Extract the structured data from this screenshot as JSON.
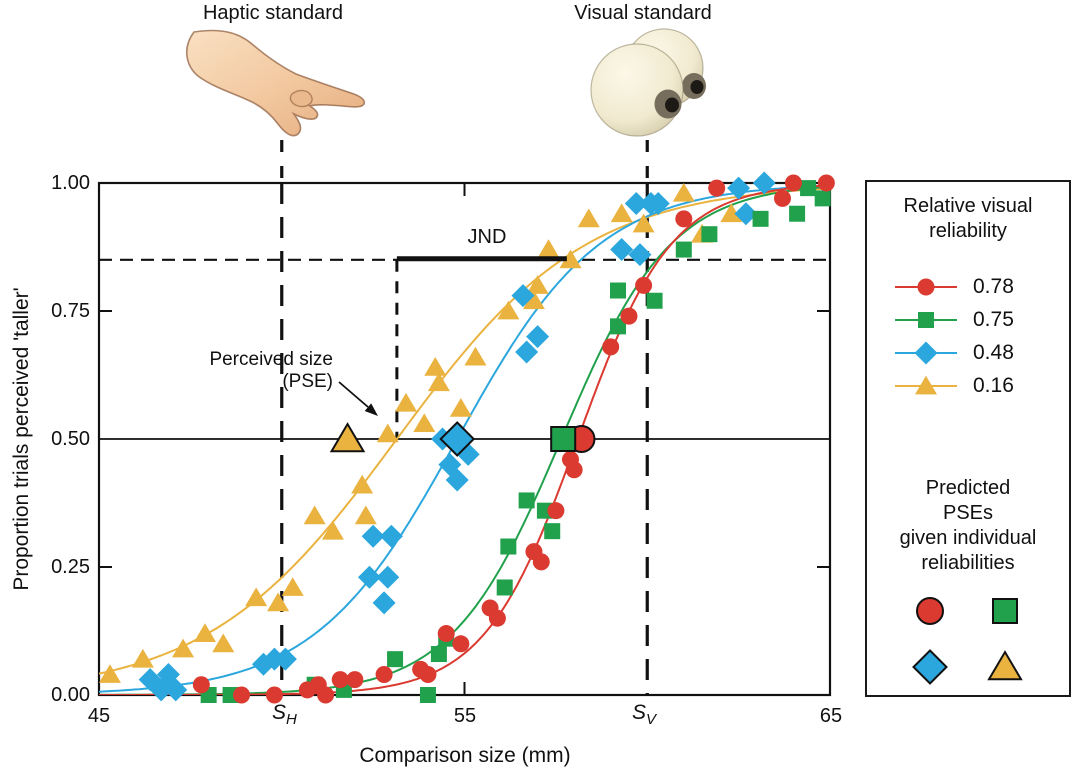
{
  "header": {
    "haptic_label": "Haptic standard",
    "visual_label": "Visual standard"
  },
  "axes": {
    "x": {
      "title": "Comparison size (mm)",
      "ticks": [
        "45",
        "55",
        "65"
      ],
      "standard_haptic": {
        "base": "S",
        "sub": "H"
      },
      "standard_visual": {
        "base": "S",
        "sub": "V"
      }
    },
    "y": {
      "title": "Proportion trials perceived 'taller'",
      "ticks": [
        "0.00",
        "0.25",
        "0.50",
        "0.75",
        "1.00"
      ]
    }
  },
  "annotations": {
    "jnd": "JND",
    "pse_line1": "Perceived size",
    "pse_line2": "(PSE)"
  },
  "legend": {
    "title_line1": "Relative visual",
    "title_line2": "reliability",
    "items": [
      {
        "label": "0.78",
        "shape": "circle",
        "color": "#da3a30"
      },
      {
        "label": "0.75",
        "shape": "square",
        "color": "#21a14c"
      },
      {
        "label": "0.48",
        "shape": "diamond",
        "color": "#2ba7dd"
      },
      {
        "label": "0.16",
        "shape": "triangle",
        "color": "#eab23f"
      }
    ],
    "predicted_title_lines": [
      "Predicted",
      "PSEs",
      "given individual",
      "reliabilities"
    ],
    "predicted_markers": [
      {
        "shape": "circle",
        "color": "#da3a30"
      },
      {
        "shape": "square",
        "color": "#21a14c"
      },
      {
        "shape": "diamond",
        "color": "#2ba7dd"
      },
      {
        "shape": "triangle",
        "color": "#eab23f"
      }
    ]
  },
  "chart_data": {
    "type": "scatter",
    "title": "",
    "xlabel": "Comparison size (mm)",
    "ylabel": "Proportion trials perceived 'taller'",
    "xlim": [
      45,
      65
    ],
    "ylim": [
      0,
      1
    ],
    "x_ticks": [
      45,
      55,
      65
    ],
    "y_ticks": [
      0,
      0.25,
      0.5,
      0.75,
      1
    ],
    "haptic_standard_mm": 50,
    "visual_standard_mm": 60,
    "jnd_level": 0.85,
    "measured_pse_mm": 53.15,
    "jnd_span_mm": [
      53.15,
      57.8
    ],
    "series": [
      {
        "name": "0.16",
        "reliability": 0.16,
        "shape": "triangle",
        "color": "#eab23f",
        "predicted_pse_mm": 51.8,
        "curve": {
          "type": "logistic",
          "pse": 53.15,
          "slope": 2.6
        },
        "points": [
          [
            45.3,
            0.04
          ],
          [
            46.2,
            0.07
          ],
          [
            47.3,
            0.09
          ],
          [
            47.9,
            0.12
          ],
          [
            48.4,
            0.1
          ],
          [
            49.3,
            0.19
          ],
          [
            49.9,
            0.18
          ],
          [
            50.3,
            0.21
          ],
          [
            50.9,
            0.35
          ],
          [
            51.4,
            0.32
          ],
          [
            52.2,
            0.41
          ],
          [
            52.3,
            0.35
          ],
          [
            52.9,
            0.51
          ],
          [
            53.4,
            0.57
          ],
          [
            53.9,
            0.53
          ],
          [
            54.2,
            0.64
          ],
          [
            54.3,
            0.61
          ],
          [
            54.9,
            0.56
          ],
          [
            55.3,
            0.66
          ],
          [
            56.2,
            0.75
          ],
          [
            56.9,
            0.77
          ],
          [
            57.0,
            0.8
          ],
          [
            57.3,
            0.87
          ],
          [
            57.9,
            0.85
          ],
          [
            58.4,
            0.93
          ],
          [
            59.3,
            0.94
          ],
          [
            59.9,
            0.92
          ],
          [
            61.0,
            0.98
          ],
          [
            61.5,
            0.9
          ],
          [
            62.3,
            0.94
          ]
        ]
      },
      {
        "name": "0.48",
        "reliability": 0.48,
        "shape": "diamond",
        "color": "#2ba7dd",
        "predicted_pse_mm": 54.8,
        "curve": {
          "type": "logistic",
          "pse": 54.8,
          "slope": 1.95
        },
        "points": [
          [
            46.4,
            0.03
          ],
          [
            46.7,
            0.01
          ],
          [
            46.9,
            0.04
          ],
          [
            47.1,
            0.01
          ],
          [
            49.5,
            0.06
          ],
          [
            49.8,
            0.07
          ],
          [
            50.1,
            0.07
          ],
          [
            52.4,
            0.23
          ],
          [
            52.5,
            0.31
          ],
          [
            52.8,
            0.18
          ],
          [
            52.9,
            0.23
          ],
          [
            53.0,
            0.31
          ],
          [
            54.4,
            0.5
          ],
          [
            54.6,
            0.45
          ],
          [
            54.8,
            0.42
          ],
          [
            55.1,
            0.47
          ],
          [
            56.6,
            0.78
          ],
          [
            56.7,
            0.67
          ],
          [
            57.0,
            0.7
          ],
          [
            59.3,
            0.87
          ],
          [
            59.8,
            0.86
          ],
          [
            59.7,
            0.96
          ],
          [
            60.1,
            0.96
          ],
          [
            60.3,
            0.96
          ],
          [
            62.5,
            0.99
          ],
          [
            62.7,
            0.94
          ],
          [
            63.2,
            1.0
          ]
        ]
      },
      {
        "name": "0.75",
        "reliability": 0.75,
        "shape": "square",
        "color": "#21a14c",
        "predicted_pse_mm": 57.7,
        "curve": {
          "type": "logistic",
          "pse": 57.65,
          "slope": 1.5
        },
        "points": [
          [
            48.0,
            0.0
          ],
          [
            48.6,
            0.0
          ],
          [
            50.9,
            0.02
          ],
          [
            51.7,
            0.01
          ],
          [
            53.1,
            0.07
          ],
          [
            54.0,
            0.0
          ],
          [
            54.3,
            0.08
          ],
          [
            54.5,
            0.11
          ],
          [
            56.1,
            0.21
          ],
          [
            56.2,
            0.29
          ],
          [
            56.7,
            0.38
          ],
          [
            57.2,
            0.36
          ],
          [
            57.4,
            0.32
          ],
          [
            59.2,
            0.79
          ],
          [
            59.2,
            0.72
          ],
          [
            60.2,
            0.77
          ],
          [
            61.0,
            0.87
          ],
          [
            61.7,
            0.9
          ],
          [
            63.1,
            0.93
          ],
          [
            64.1,
            0.94
          ],
          [
            64.4,
            0.99
          ],
          [
            64.8,
            0.97
          ]
        ]
      },
      {
        "name": "0.78",
        "reliability": 0.78,
        "shape": "circle",
        "color": "#da3a30",
        "predicted_pse_mm": 58.2,
        "curve": {
          "type": "logistic",
          "pse": 58.1,
          "slope": 1.28
        },
        "points": [
          [
            47.8,
            0.02
          ],
          [
            48.9,
            0.0
          ],
          [
            49.8,
            0.0
          ],
          [
            50.7,
            0.01
          ],
          [
            51.0,
            0.02
          ],
          [
            51.2,
            0.0
          ],
          [
            51.6,
            0.03
          ],
          [
            52.0,
            0.03
          ],
          [
            52.8,
            0.04
          ],
          [
            53.8,
            0.05
          ],
          [
            54.0,
            0.04
          ],
          [
            54.5,
            0.12
          ],
          [
            54.9,
            0.1
          ],
          [
            55.7,
            0.17
          ],
          [
            55.9,
            0.15
          ],
          [
            56.9,
            0.28
          ],
          [
            57.1,
            0.26
          ],
          [
            57.5,
            0.36
          ],
          [
            57.9,
            0.46
          ],
          [
            58.0,
            0.44
          ],
          [
            59.0,
            0.68
          ],
          [
            59.5,
            0.74
          ],
          [
            59.9,
            0.8
          ],
          [
            61.0,
            0.93
          ],
          [
            61.9,
            0.99
          ],
          [
            63.7,
            0.97
          ],
          [
            64.0,
            1.0
          ],
          [
            64.9,
            1.0
          ]
        ]
      }
    ]
  }
}
